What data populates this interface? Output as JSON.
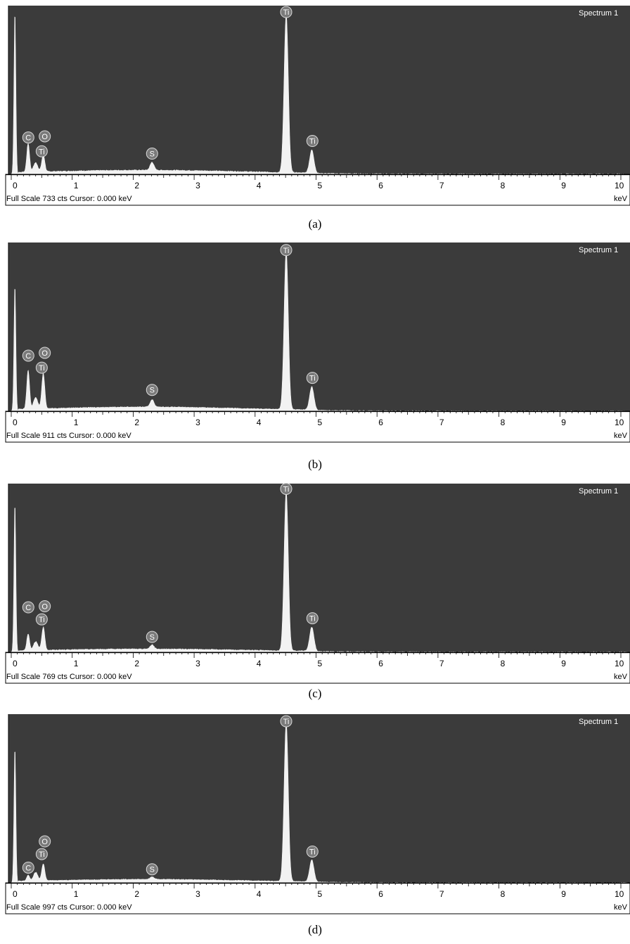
{
  "chart_data": [
    {
      "type": "line",
      "panel": "(a)",
      "label": "Spectrum 1",
      "footer": "Full Scale 733 cts  Cursor: 0.000 keV",
      "unit": "keV",
      "x_ticks": [
        "0",
        "1",
        "2",
        "3",
        "4",
        "5",
        "6",
        "7",
        "8",
        "9",
        "10"
      ],
      "xlim": [
        0,
        10
      ],
      "ylim": [
        0,
        733
      ],
      "peaks": [
        {
          "x": 0.06,
          "y": 705,
          "w": 0.022
        },
        {
          "x": 0.277,
          "y": 125,
          "w": 0.032
        },
        {
          "x": 0.4,
          "y": 40,
          "w": 0.05
        },
        {
          "x": 0.525,
          "y": 75,
          "w": 0.035
        },
        {
          "x": 2.31,
          "y": 35,
          "w": 0.045
        },
        {
          "x": 4.51,
          "y": 690,
          "w": 0.048
        },
        {
          "x": 4.93,
          "y": 100,
          "w": 0.05
        }
      ],
      "background": 15,
      "elements": [
        {
          "symbol": "C",
          "x": 0.28,
          "y": 160
        },
        {
          "symbol": "O",
          "x": 0.55,
          "y": 165
        },
        {
          "symbol": "Ti",
          "x": 0.5,
          "y": 100
        },
        {
          "symbol": "S",
          "x": 2.31,
          "y": 90
        },
        {
          "symbol": "Ti",
          "x": 4.51,
          "y": 705
        },
        {
          "symbol": "Ti",
          "x": 4.94,
          "y": 145
        }
      ]
    },
    {
      "type": "line",
      "panel": "(b)",
      "label": "Spectrum 1",
      "footer": "Full Scale 911 cts  Cursor: 0.000 keV",
      "unit": "keV",
      "x_ticks": [
        "0",
        "1",
        "2",
        "3",
        "4",
        "5",
        "6",
        "7",
        "8",
        "9",
        "10"
      ],
      "xlim": [
        0,
        10
      ],
      "ylim": [
        0,
        911
      ],
      "peaks": [
        {
          "x": 0.06,
          "y": 680,
          "w": 0.022
        },
        {
          "x": 0.277,
          "y": 210,
          "w": 0.032
        },
        {
          "x": 0.4,
          "y": 60,
          "w": 0.05
        },
        {
          "x": 0.525,
          "y": 190,
          "w": 0.035
        },
        {
          "x": 2.31,
          "y": 40,
          "w": 0.045
        },
        {
          "x": 4.51,
          "y": 860,
          "w": 0.048
        },
        {
          "x": 4.93,
          "y": 125,
          "w": 0.05
        }
      ],
      "background": 20,
      "elements": [
        {
          "symbol": "C",
          "x": 0.28,
          "y": 300
        },
        {
          "symbol": "O",
          "x": 0.55,
          "y": 315
        },
        {
          "symbol": "Ti",
          "x": 0.5,
          "y": 235
        },
        {
          "symbol": "S",
          "x": 2.31,
          "y": 115
        },
        {
          "symbol": "Ti",
          "x": 4.51,
          "y": 870
        },
        {
          "symbol": "Ti",
          "x": 4.94,
          "y": 180
        }
      ]
    },
    {
      "type": "line",
      "panel": "(c)",
      "label": "Spectrum 1",
      "footer": "Full Scale 769 cts  Cursor: 0.000 keV",
      "unit": "keV",
      "x_ticks": [
        "0",
        "1",
        "2",
        "3",
        "4",
        "5",
        "6",
        "7",
        "8",
        "9",
        "10"
      ],
      "xlim": [
        0,
        10
      ],
      "ylim": [
        0,
        769
      ],
      "peaks": [
        {
          "x": 0.06,
          "y": 680,
          "w": 0.022
        },
        {
          "x": 0.277,
          "y": 75,
          "w": 0.032
        },
        {
          "x": 0.4,
          "y": 40,
          "w": 0.05
        },
        {
          "x": 0.525,
          "y": 105,
          "w": 0.035
        },
        {
          "x": 2.31,
          "y": 20,
          "w": 0.045
        },
        {
          "x": 4.51,
          "y": 730,
          "w": 0.048
        },
        {
          "x": 4.93,
          "y": 110,
          "w": 0.05
        }
      ],
      "background": 12,
      "elements": [
        {
          "symbol": "C",
          "x": 0.28,
          "y": 205
        },
        {
          "symbol": "O",
          "x": 0.55,
          "y": 210
        },
        {
          "symbol": "Ti",
          "x": 0.5,
          "y": 150
        },
        {
          "symbol": "S",
          "x": 2.31,
          "y": 70
        },
        {
          "symbol": "Ti",
          "x": 4.51,
          "y": 745
        },
        {
          "symbol": "Ti",
          "x": 4.94,
          "y": 155
        }
      ]
    },
    {
      "type": "line",
      "panel": "(d)",
      "label": "Spectrum 1",
      "footer": "Full Scale 997 cts  Cursor: 0.000 keV",
      "unit": "keV",
      "x_ticks": [
        "0",
        "1",
        "2",
        "3",
        "4",
        "5",
        "6",
        "7",
        "8",
        "9",
        "10"
      ],
      "xlim": [
        0,
        10
      ],
      "ylim": [
        0,
        997
      ],
      "peaks": [
        {
          "x": 0.06,
          "y": 800,
          "w": 0.022
        },
        {
          "x": 0.277,
          "y": 35,
          "w": 0.032
        },
        {
          "x": 0.4,
          "y": 50,
          "w": 0.05
        },
        {
          "x": 0.525,
          "y": 100,
          "w": 0.035
        },
        {
          "x": 2.31,
          "y": 15,
          "w": 0.045
        },
        {
          "x": 4.51,
          "y": 940,
          "w": 0.048
        },
        {
          "x": 4.93,
          "y": 130,
          "w": 0.05
        }
      ],
      "background": 18,
      "elements": [
        {
          "symbol": "C",
          "x": 0.28,
          "y": 90
        },
        {
          "symbol": "O",
          "x": 0.55,
          "y": 245
        },
        {
          "symbol": "Ti",
          "x": 0.5,
          "y": 170
        },
        {
          "symbol": "S",
          "x": 2.31,
          "y": 80
        },
        {
          "symbol": "Ti",
          "x": 4.51,
          "y": 955
        },
        {
          "symbol": "Ti",
          "x": 4.94,
          "y": 185
        }
      ]
    }
  ],
  "colors": {
    "plot_bg": "#3b3b3b",
    "spectrum": "#f2f2f2",
    "marker": "#7a7a7a",
    "marker_stroke": "#d8d8d8",
    "text": "#000000"
  }
}
